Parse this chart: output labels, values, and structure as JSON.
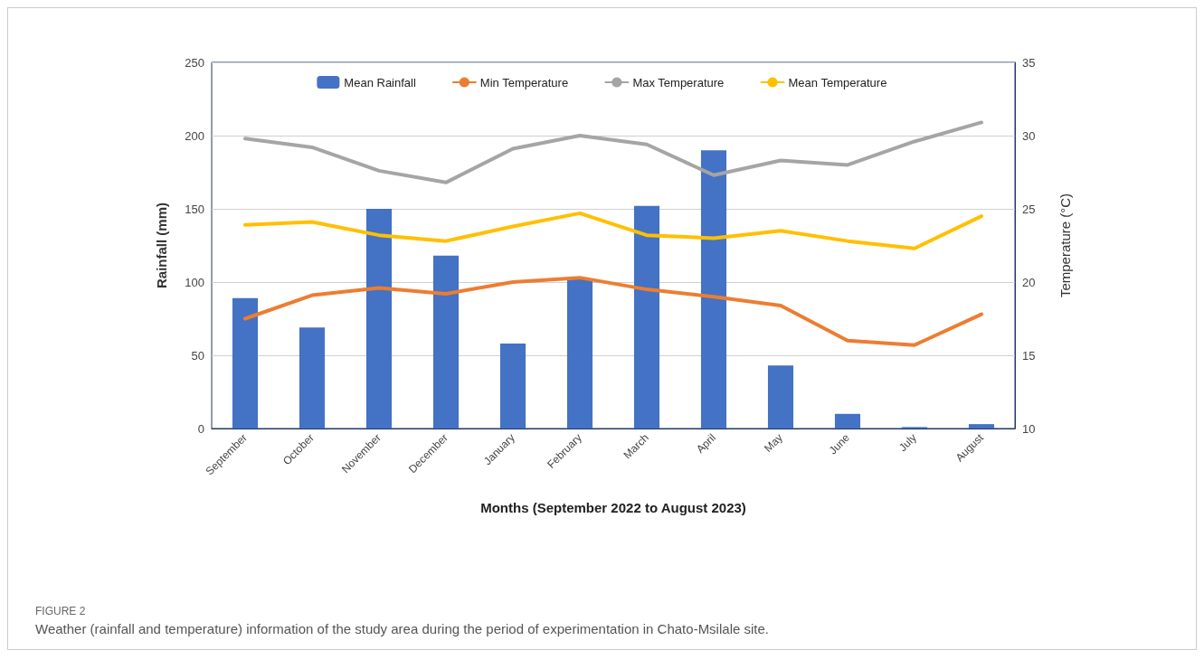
{
  "chart_data": {
    "type": "bar",
    "xlabel": "Months (September 2022 to August 2023)",
    "ylabel": "Rainfall (mm)",
    "y2label": "Temperature (°C)",
    "categories": [
      "September",
      "October",
      "November",
      "December",
      "January",
      "February",
      "March",
      "April",
      "May",
      "June",
      "July",
      "August"
    ],
    "series": [
      {
        "name": "Mean Rainfall",
        "color": "#4472c4",
        "values": [
          89,
          69,
          150,
          118,
          58,
          102,
          152,
          190,
          43,
          10,
          1,
          3
        ]
      },
      {
        "name": "Min Temperature",
        "type": "line",
        "axis": "y2",
        "color": "#ed7d31",
        "values": [
          17.5,
          19.1,
          19.6,
          19.2,
          20.0,
          20.3,
          19.5,
          19.0,
          18.4,
          16.0,
          15.7,
          17.8
        ]
      },
      {
        "name": "Max Temperature",
        "type": "line",
        "axis": "y2",
        "color": "#a5a5a5",
        "values": [
          29.8,
          29.2,
          27.6,
          26.8,
          29.1,
          30.0,
          29.4,
          27.3,
          28.3,
          28.0,
          29.6,
          30.9
        ]
      },
      {
        "name": "Mean Temperature",
        "type": "line",
        "axis": "y2",
        "color": "#ffc000",
        "values": [
          23.9,
          24.1,
          23.2,
          22.8,
          23.8,
          24.7,
          23.2,
          23.0,
          23.5,
          22.8,
          22.3,
          24.5
        ]
      }
    ],
    "ylim": [
      0,
      250
    ],
    "yticks": [
      0,
      50,
      100,
      150,
      200,
      250
    ],
    "y2lim": [
      10,
      35
    ],
    "y2ticks": [
      10,
      15,
      20,
      25,
      30,
      35
    ],
    "grid": "y",
    "legend": "top",
    "marker": "none",
    "line_style": "solid",
    "annotations": [
      "FIGURE 2",
      "Weather (rainfall and temperature) information of the study area during the period of experimentation in Chato-Msilale site."
    ]
  }
}
